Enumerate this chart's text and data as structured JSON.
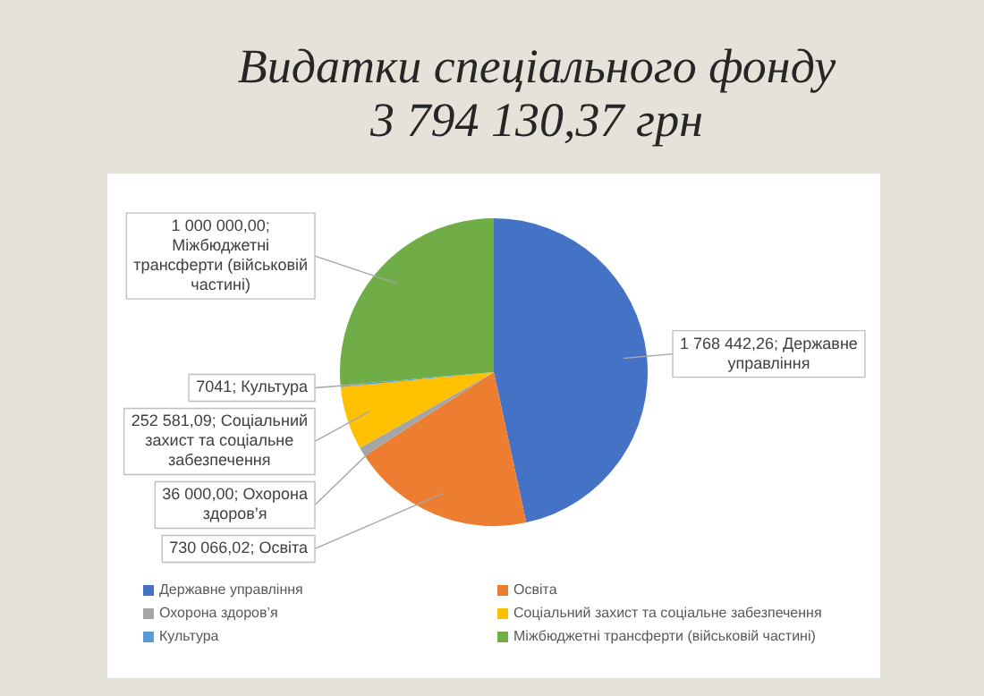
{
  "chart_data": {
    "type": "pie",
    "title": "Видатки спеціального фонду\n3 794 130,37 грн",
    "categories": [
      "Державне управління",
      "Освіта",
      "Охорона здоров’я",
      "Соціальний захист та соціальне забезпечення",
      "Культура",
      "Міжбюджетні трансферти (військовій частині)"
    ],
    "values": [
      1768442.26,
      730066.02,
      36000.0,
      252581.09,
      7041,
      1000000.0
    ],
    "value_labels": [
      "1 768 442,26;",
      "730 066,02;",
      "36 000,00;",
      "252 581,09;",
      "7041;",
      "1 000 000,00;"
    ],
    "colors": [
      "#4472c4",
      "#ed7d31",
      "#a5a5a5",
      "#ffc000",
      "#5b9bd5",
      "#70ad47"
    ],
    "legend": "bottom"
  }
}
